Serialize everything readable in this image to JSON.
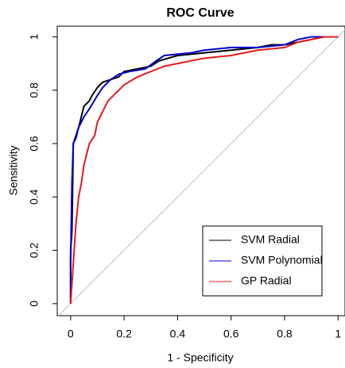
{
  "chart_data": {
    "type": "line",
    "title": "ROC Curve",
    "x_label": "1 - Specificity",
    "y_label": "Sensitivity",
    "xlim": [
      -0.05,
      1.02
    ],
    "ylim": [
      -0.045,
      1.04
    ],
    "xticks": [
      0,
      0.2,
      0.4,
      0.6,
      0.8,
      1
    ],
    "yticks": [
      0,
      0.2,
      0.4,
      0.6,
      0.8,
      1
    ],
    "reference_line": true,
    "reference_color": "#c0c0c0",
    "legend": "bottomright",
    "series": [
      {
        "name": "SVM Radial",
        "color": "#000000",
        "x": [
          0,
          0,
          0.005,
          0.01,
          0.02,
          0.03,
          0.04,
          0.05,
          0.07,
          0.08,
          0.1,
          0.12,
          0.15,
          0.18,
          0.2,
          0.25,
          0.3,
          0.33,
          0.4,
          0.5,
          0.6,
          0.7,
          0.75,
          0.8,
          0.85,
          0.9,
          0.95,
          1
        ],
        "values": [
          0,
          0.2,
          0.27,
          0.6,
          0.63,
          0.66,
          0.7,
          0.74,
          0.76,
          0.78,
          0.81,
          0.83,
          0.84,
          0.85,
          0.87,
          0.88,
          0.89,
          0.91,
          0.93,
          0.94,
          0.95,
          0.96,
          0.97,
          0.97,
          0.98,
          0.99,
          1,
          1
        ]
      },
      {
        "name": "SVM Polynomial",
        "color": "#0000cc",
        "x": [
          0,
          0,
          0.005,
          0.01,
          0.02,
          0.03,
          0.05,
          0.07,
          0.1,
          0.12,
          0.15,
          0.18,
          0.22,
          0.28,
          0.32,
          0.35,
          0.45,
          0.5,
          0.6,
          0.7,
          0.8,
          0.85,
          0.9,
          1
        ],
        "values": [
          0,
          0.15,
          0.45,
          0.6,
          0.62,
          0.66,
          0.7,
          0.73,
          0.78,
          0.81,
          0.84,
          0.86,
          0.87,
          0.88,
          0.91,
          0.93,
          0.94,
          0.95,
          0.96,
          0.96,
          0.97,
          0.99,
          1,
          1
        ]
      },
      {
        "name": "GP Radial",
        "color": "#e41a1c",
        "x": [
          0,
          0.01,
          0.02,
          0.03,
          0.04,
          0.05,
          0.06,
          0.07,
          0.09,
          0.1,
          0.12,
          0.14,
          0.17,
          0.2,
          0.25,
          0.3,
          0.35,
          0.4,
          0.5,
          0.6,
          0.7,
          0.8,
          0.85,
          0.9,
          0.95,
          1
        ],
        "values": [
          0,
          0.15,
          0.3,
          0.4,
          0.45,
          0.52,
          0.56,
          0.6,
          0.63,
          0.68,
          0.72,
          0.76,
          0.79,
          0.82,
          0.85,
          0.87,
          0.89,
          0.9,
          0.92,
          0.93,
          0.95,
          0.96,
          0.98,
          0.99,
          1,
          1
        ]
      }
    ]
  }
}
